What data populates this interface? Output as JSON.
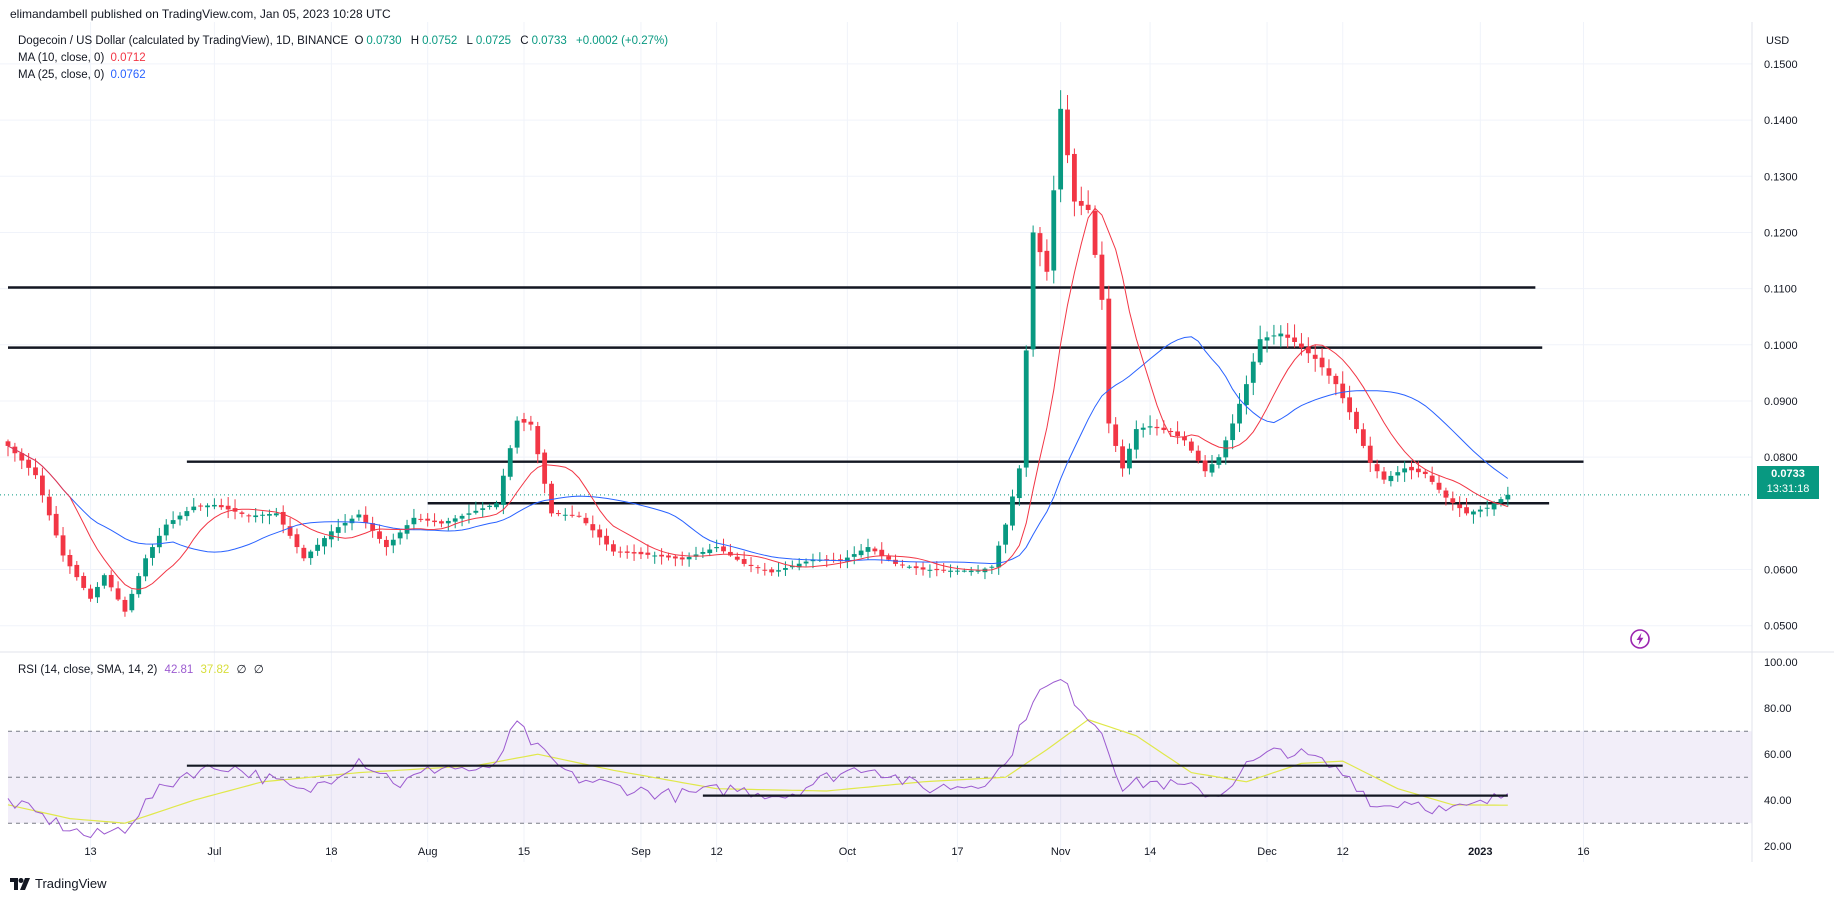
{
  "publisher": "elimandambell published on TradingView.com, Jan 05, 2023 10:28 UTC",
  "legend": {
    "symbol": "Dogecoin / US Dollar (calculated by TradingView), 1D, BINANCE",
    "open_label": "O",
    "open": "0.0730",
    "high_label": "H",
    "high": "0.0752",
    "low_label": "L",
    "low": "0.0725",
    "close_label": "C",
    "close": "0.0733",
    "change": "+0.0002 (+0.27%)",
    "ma10_label": "MA (10, close, 0)",
    "ma10_value": "0.0712",
    "ma25_label": "MA (25, close, 0)",
    "ma25_value": "0.0762"
  },
  "currency": "USD",
  "last_price": {
    "price": "0.0733",
    "countdown": "13:31:18"
  },
  "rsi_legend": {
    "label": "RSI (14, close, SMA, 14, 2)",
    "value": "42.81",
    "sma_value": "37.82",
    "extra1": "∅",
    "extra2": "∅"
  },
  "footer_logo": "TradingView",
  "colors": {
    "up": "#089981",
    "down": "#f23645",
    "ma10": "#f23645",
    "ma25": "#2962ff",
    "rsi": "#9c5bd0",
    "rsi_sma": "#e0e84a",
    "level": "#131722"
  },
  "chart_data": [
    {
      "type": "candlestick",
      "title": "",
      "price_ticks": [
        "0.1500",
        "0.1400",
        "0.1300",
        "0.1200",
        "0.1100",
        "0.1000",
        "0.0900",
        "0.0800",
        "0.0600",
        "0.0500"
      ],
      "ylim": [
        0.0455,
        0.1555
      ],
      "x_ticks": [
        "13",
        "Jul",
        "18",
        "Aug",
        "15",
        "Sep",
        "12",
        "Oct",
        "17",
        "Nov",
        "14",
        "Dec",
        "12",
        "2023",
        "16"
      ],
      "anchors": [
        {
          "label": "Jun 01",
          "v": 0.082
        },
        {
          "label": "Jun 05",
          "v": 0.0768
        },
        {
          "label": "Jun 09",
          "v": 0.0625
        },
        {
          "label": "Jun 13",
          "v": 0.0548
        },
        {
          "label": "Jun 15",
          "v": 0.059
        },
        {
          "label": "Jun 18",
          "v": 0.0525
        },
        {
          "label": "Jun 21",
          "v": 0.062
        },
        {
          "label": "Jun 24",
          "v": 0.068
        },
        {
          "label": "Jun 28",
          "v": 0.0712
        },
        {
          "label": "Jul 01",
          "v": 0.0715
        },
        {
          "label": "Jul 06",
          "v": 0.0695
        },
        {
          "label": "Jul 10",
          "v": 0.07
        },
        {
          "label": "Jul 14",
          "v": 0.062
        },
        {
          "label": "Jul 18",
          "v": 0.0668
        },
        {
          "label": "Jul 22",
          "v": 0.0698
        },
        {
          "label": "Jul 26",
          "v": 0.064
        },
        {
          "label": "Jul 30",
          "v": 0.0692
        },
        {
          "label": "Aug 03",
          "v": 0.0682
        },
        {
          "label": "Aug 07",
          "v": 0.07
        },
        {
          "label": "Aug 11",
          "v": 0.0718
        },
        {
          "label": "Aug 14",
          "v": 0.0865
        },
        {
          "label": "Aug 16",
          "v": 0.0858
        },
        {
          "label": "Aug 19",
          "v": 0.07
        },
        {
          "label": "Aug 23",
          "v": 0.0695
        },
        {
          "label": "Aug 28",
          "v": 0.0632
        },
        {
          "label": "Sep 03",
          "v": 0.0625
        },
        {
          "label": "Sep 07",
          "v": 0.0618
        },
        {
          "label": "Sep 12",
          "v": 0.064
        },
        {
          "label": "Sep 16",
          "v": 0.061
        },
        {
          "label": "Sep 20",
          "v": 0.0595
        },
        {
          "label": "Sep 26",
          "v": 0.0618
        },
        {
          "label": "Sep 30",
          "v": 0.0615
        },
        {
          "label": "Oct 04",
          "v": 0.064
        },
        {
          "label": "Oct 08",
          "v": 0.061
        },
        {
          "label": "Oct 12",
          "v": 0.06
        },
        {
          "label": "Oct 16",
          "v": 0.0598
        },
        {
          "label": "Oct 20",
          "v": 0.0598
        },
        {
          "label": "Oct 22",
          "v": 0.0605
        },
        {
          "label": "Oct 24",
          "v": 0.068
        },
        {
          "label": "Oct 26",
          "v": 0.078
        },
        {
          "label": "Oct 28",
          "v": 0.12
        },
        {
          "label": "Oct 30",
          "v": 0.113
        },
        {
          "label": "Nov 01",
          "v": 0.142
        },
        {
          "label": "Nov 03",
          "v": 0.1255
        },
        {
          "label": "Nov 05",
          "v": 0.124
        },
        {
          "label": "Nov 07",
          "v": 0.108
        },
        {
          "label": "Nov 08",
          "v": 0.086
        },
        {
          "label": "Nov 10",
          "v": 0.078
        },
        {
          "label": "Nov 12",
          "v": 0.085
        },
        {
          "label": "Nov 14",
          "v": 0.0855
        },
        {
          "label": "Nov 17",
          "v": 0.0845
        },
        {
          "label": "Nov 19",
          "v": 0.083
        },
        {
          "label": "Nov 22",
          "v": 0.0775
        },
        {
          "label": "Nov 24",
          "v": 0.08
        },
        {
          "label": "Nov 26",
          "v": 0.086
        },
        {
          "label": "Nov 28",
          "v": 0.093
        },
        {
          "label": "Nov 30",
          "v": 0.101
        },
        {
          "label": "Dec 03",
          "v": 0.102
        },
        {
          "label": "Dec 05",
          "v": 0.1005
        },
        {
          "label": "Dec 08",
          "v": 0.0975
        },
        {
          "label": "Dec 11",
          "v": 0.093
        },
        {
          "label": "Dec 13",
          "v": 0.088
        },
        {
          "label": "Dec 16",
          "v": 0.079
        },
        {
          "label": "Dec 18",
          "v": 0.076
        },
        {
          "label": "Dec 21",
          "v": 0.078
        },
        {
          "label": "Dec 24",
          "v": 0.077
        },
        {
          "label": "Dec 27",
          "v": 0.0728
        },
        {
          "label": "Dec 30",
          "v": 0.07
        },
        {
          "label": "Jan 02",
          "v": 0.071
        },
        {
          "label": "Jan 05",
          "v": 0.0733
        }
      ],
      "series": [
        {
          "name": "MA (10, close, 0)",
          "last": 0.0712
        },
        {
          "name": "MA (25, close, 0)",
          "last": 0.0762
        }
      ],
      "levels": [
        {
          "price": 0.1102,
          "from": "Jun 01",
          "to": "Jan 09"
        },
        {
          "price": 0.0995,
          "from": "Jun 01",
          "to": "Jan 10"
        },
        {
          "price": 0.0792,
          "from": "Jun 27",
          "to": "Jan 16"
        },
        {
          "price": 0.0718,
          "from": "Aug 01",
          "to": "Jan 11"
        }
      ],
      "last_price_line": 0.0733
    },
    {
      "type": "line",
      "title": "RSI (14, close, SMA, 14, 2)",
      "ylim": [
        14,
        104
      ],
      "y_ticks": [
        "100.00",
        "80.00",
        "60.00",
        "40.00",
        "20.00"
      ],
      "bands": {
        "upper": 70,
        "middle": 50,
        "lower": 30
      },
      "rsi_anchors": [
        {
          "label": "Jun 01",
          "v": 40
        },
        {
          "label": "Jun 08",
          "v": 30
        },
        {
          "label": "Jun 13",
          "v": 24
        },
        {
          "label": "Jun 18",
          "v": 28
        },
        {
          "label": "Jun 22",
          "v": 42
        },
        {
          "label": "Jun 27",
          "v": 52
        },
        {
          "label": "Jul 03",
          "v": 55
        },
        {
          "label": "Jul 10",
          "v": 48
        },
        {
          "label": "Jul 14",
          "v": 43
        },
        {
          "label": "Jul 18",
          "v": 50
        },
        {
          "label": "Jul 22",
          "v": 58
        },
        {
          "label": "Jul 28",
          "v": 47
        },
        {
          "label": "Aug 03",
          "v": 55
        },
        {
          "label": "Aug 10",
          "v": 52
        },
        {
          "label": "Aug 14",
          "v": 73
        },
        {
          "label": "Aug 17",
          "v": 62
        },
        {
          "label": "Aug 22",
          "v": 50
        },
        {
          "label": "Aug 30",
          "v": 45
        },
        {
          "label": "Sep 06",
          "v": 42
        },
        {
          "label": "Sep 14",
          "v": 45
        },
        {
          "label": "Sep 22",
          "v": 42
        },
        {
          "label": "Sep 28",
          "v": 50
        },
        {
          "label": "Oct 04",
          "v": 55
        },
        {
          "label": "Oct 12",
          "v": 45
        },
        {
          "label": "Oct 20",
          "v": 47
        },
        {
          "label": "Oct 24",
          "v": 55
        },
        {
          "label": "Oct 28",
          "v": 85
        },
        {
          "label": "Nov 01",
          "v": 92
        },
        {
          "label": "Nov 04",
          "v": 80
        },
        {
          "label": "Nov 07",
          "v": 70
        },
        {
          "label": "Nov 10",
          "v": 46
        },
        {
          "label": "Nov 14",
          "v": 48
        },
        {
          "label": "Nov 20",
          "v": 45
        },
        {
          "label": "Nov 24",
          "v": 42
        },
        {
          "label": "Nov 28",
          "v": 55
        },
        {
          "label": "Dec 03",
          "v": 62
        },
        {
          "label": "Dec 08",
          "v": 58
        },
        {
          "label": "Dec 13",
          "v": 50
        },
        {
          "label": "Dec 17",
          "v": 37
        },
        {
          "label": "Dec 22",
          "v": 40
        },
        {
          "label": "Dec 27",
          "v": 35
        },
        {
          "label": "Jan 01",
          "v": 38
        },
        {
          "label": "Jan 05",
          "v": 42.81
        }
      ],
      "sma_anchors": [
        {
          "label": "Jun 01",
          "v": 38
        },
        {
          "label": "Jun 10",
          "v": 32
        },
        {
          "label": "Jun 18",
          "v": 30
        },
        {
          "label": "Jun 28",
          "v": 40
        },
        {
          "label": "Jul 08",
          "v": 48
        },
        {
          "label": "Jul 22",
          "v": 52
        },
        {
          "label": "Aug 08",
          "v": 55
        },
        {
          "label": "Aug 17",
          "v": 60
        },
        {
          "label": "Aug 28",
          "v": 53
        },
        {
          "label": "Sep 12",
          "v": 45
        },
        {
          "label": "Sep 28",
          "v": 44
        },
        {
          "label": "Oct 12",
          "v": 48
        },
        {
          "label": "Oct 24",
          "v": 50
        },
        {
          "label": "Oct 30",
          "v": 62
        },
        {
          "label": "Nov 05",
          "v": 75
        },
        {
          "label": "Nov 12",
          "v": 68
        },
        {
          "label": "Nov 20",
          "v": 52
        },
        {
          "label": "Nov 28",
          "v": 48
        },
        {
          "label": "Dec 06",
          "v": 56
        },
        {
          "label": "Dec 12",
          "v": 57
        },
        {
          "label": "Dec 20",
          "v": 45
        },
        {
          "label": "Dec 28",
          "v": 38
        },
        {
          "label": "Jan 05",
          "v": 37.82
        }
      ],
      "levels": [
        {
          "value": 55,
          "from": "Jun 27",
          "to": "Dec 12"
        },
        {
          "value": 42,
          "from": "Sep 10",
          "to": "Jan 05"
        }
      ]
    }
  ]
}
